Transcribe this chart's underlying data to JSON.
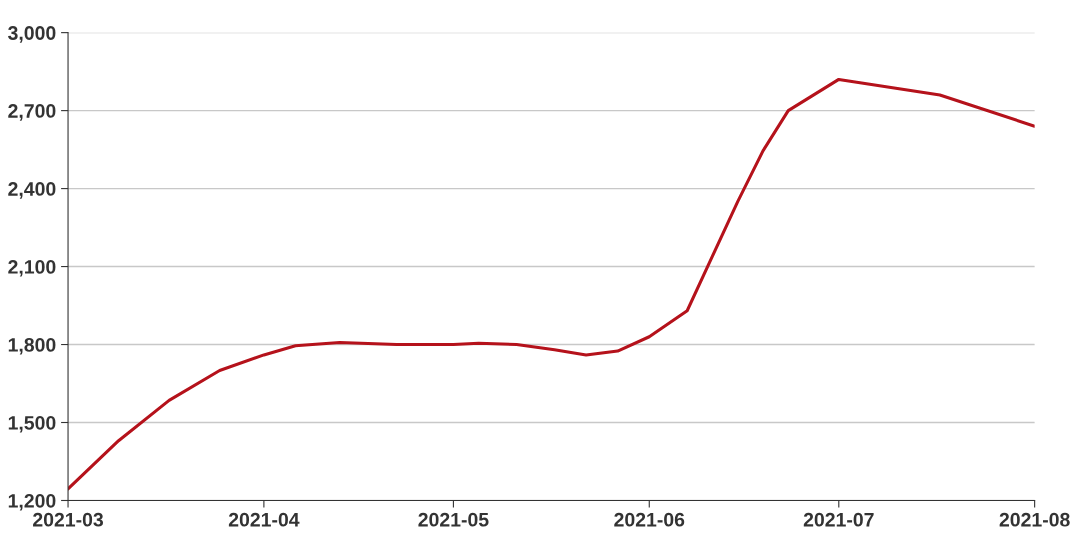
{
  "chart_data": {
    "type": "line",
    "x": [
      "2021-03-01",
      "2021-03-09",
      "2021-03-17",
      "2021-03-25",
      "2021-04-01",
      "2021-04-06",
      "2021-04-13",
      "2021-04-22",
      "2021-05-01",
      "2021-05-05",
      "2021-05-11",
      "2021-05-17",
      "2021-05-22",
      "2021-05-27",
      "2021-06-01",
      "2021-06-07",
      "2021-06-11",
      "2021-06-15",
      "2021-06-19",
      "2021-06-23",
      "2021-07-01",
      "2021-07-17",
      "2021-08-01"
    ],
    "series": [
      {
        "color": "#b5121b",
        "values": [
          1245,
          1430,
          1585,
          1700,
          1760,
          1795,
          1808,
          1800,
          1800,
          1805,
          1800,
          1780,
          1760,
          1775,
          1830,
          1930,
          2140,
          2350,
          2545,
          2700,
          2820,
          2760,
          2640
        ]
      }
    ],
    "xlim": [
      "2021-03-01",
      "2021-08-01"
    ],
    "xticks": [
      {
        "value": "2021-03-01",
        "label": "2021-03"
      },
      {
        "value": "2021-04-01",
        "label": "2021-04"
      },
      {
        "value": "2021-05-01",
        "label": "2021-05"
      },
      {
        "value": "2021-06-01",
        "label": "2021-06"
      },
      {
        "value": "2021-07-01",
        "label": "2021-07"
      },
      {
        "value": "2021-08-01",
        "label": "2021-08"
      }
    ],
    "ylim": [
      1200,
      3000
    ],
    "yticks": [
      {
        "value": 1200,
        "label": "1,200"
      },
      {
        "value": 1500,
        "label": "1,500"
      },
      {
        "value": 1800,
        "label": "1,800"
      },
      {
        "value": 2100,
        "label": "2,100"
      },
      {
        "value": 2400,
        "label": "2,400"
      },
      {
        "value": 2700,
        "label": "2,700"
      },
      {
        "value": 3000,
        "label": "3,000"
      }
    ],
    "grid": "y",
    "marker": "none",
    "line_style": "solid"
  }
}
